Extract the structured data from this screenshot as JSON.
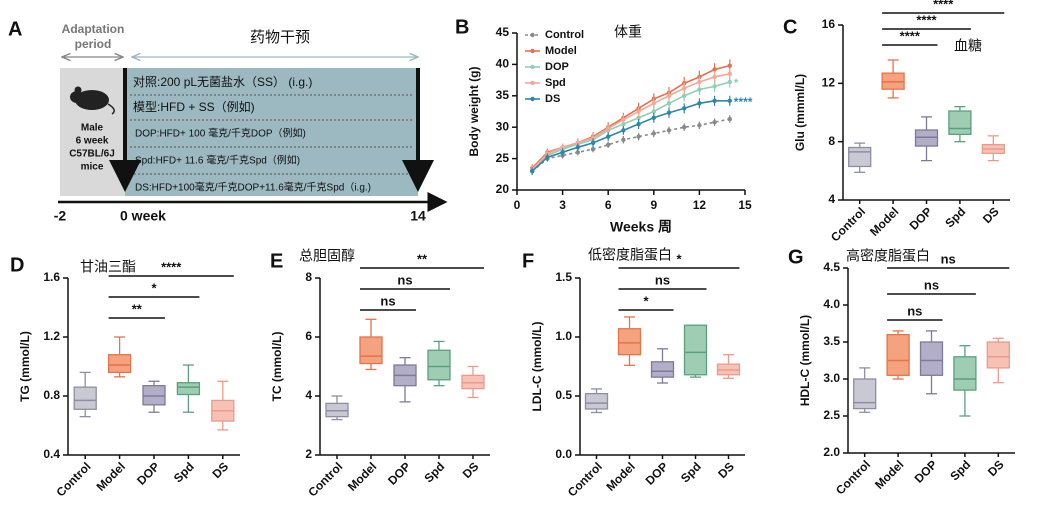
{
  "timeline": {
    "label": "A",
    "adaptation": [
      "Adaptation",
      "period"
    ],
    "intervention": "药物干预",
    "mouse": [
      "Male",
      "6 week",
      "C57BL/6J",
      "mice"
    ],
    "groups": [
      "对照:200 pL无菌盐水（SS） (i.g.)",
      "模型:HFD + SS（例如)",
      "DOP:HFD+ 100 毫克/千克DOP（例如)",
      "Spd:HFD+ 11.6 毫克/千克Spd（例如)",
      "DS:HFD+100毫克/千克DOP+11.6毫克/千克Spd（i.g.)"
    ],
    "ticks": [
      "-2",
      "0 week",
      "14"
    ]
  },
  "chart_data": [
    {
      "type": "line",
      "label": "B",
      "annotation": "体重",
      "xlabel": "Weeks 周",
      "ylabel": "Body weight (g)",
      "x": [
        1,
        2,
        3,
        4,
        5,
        6,
        7,
        8,
        9,
        10,
        11,
        12,
        13,
        14
      ],
      "xlim": [
        0,
        15
      ],
      "xticks": [
        0,
        3,
        6,
        9,
        12,
        15
      ],
      "ylim": [
        20,
        45
      ],
      "yticks": [
        20,
        25,
        30,
        35,
        40,
        45
      ],
      "series": [
        {
          "name": "Control",
          "color": "#8a8a8a",
          "dashed": true,
          "values": [
            23,
            25,
            25.5,
            26,
            26.5,
            27.2,
            28,
            28.5,
            29,
            29.5,
            30,
            30.3,
            30.8,
            31.3
          ],
          "errors": [
            0.5,
            0.5,
            0.5,
            0.5,
            0.5,
            0.5,
            0.6,
            0.6,
            0.6,
            0.6,
            0.6,
            0.6,
            0.6,
            0.6
          ]
        },
        {
          "name": "Model",
          "color": "#e8704f",
          "values": [
            23.5,
            26,
            26.8,
            27.5,
            28.5,
            30,
            31.5,
            33,
            34.5,
            35.5,
            37,
            38,
            39.2,
            39.8
          ],
          "errors": [
            0.6,
            0.6,
            0.6,
            0.7,
            0.7,
            0.8,
            0.8,
            0.9,
            0.9,
            0.9,
            1,
            1,
            1,
            1
          ]
        },
        {
          "name": "DOP",
          "color": "#8fcfb5",
          "values": [
            23.2,
            25.5,
            26.5,
            27.3,
            28,
            29.5,
            30.5,
            31.5,
            32.5,
            33.8,
            35,
            36,
            36.5,
            37.2
          ],
          "errors": [
            0.6,
            0.6,
            0.6,
            0.6,
            0.7,
            0.7,
            0.8,
            0.8,
            0.8,
            0.9,
            0.9,
            0.9,
            0.9,
            0.9
          ]
        },
        {
          "name": "Spd",
          "color": "#f2a999",
          "values": [
            23.3,
            25.8,
            26.8,
            27.5,
            28.3,
            29.8,
            31.2,
            32.5,
            33.8,
            35,
            36.2,
            37.2,
            38,
            38.5
          ],
          "errors": [
            0.6,
            0.6,
            0.6,
            0.6,
            0.7,
            0.7,
            0.8,
            0.8,
            0.8,
            0.9,
            0.9,
            0.9,
            0.9,
            0.9
          ]
        },
        {
          "name": "DS",
          "color": "#2e86ab",
          "values": [
            23,
            25.2,
            26,
            26.8,
            27.5,
            28.5,
            29.5,
            30.5,
            31.5,
            32.3,
            33,
            33.8,
            34.2,
            34.2
          ],
          "errors": [
            0.6,
            0.6,
            0.6,
            0.6,
            0.7,
            0.7,
            0.7,
            0.8,
            0.8,
            0.8,
            0.8,
            0.8,
            0.8,
            0.8
          ]
        }
      ],
      "annotations": [
        {
          "text": "*",
          "series": "DOP"
        },
        {
          "text": "****",
          "series": "DS"
        }
      ]
    },
    {
      "type": "box",
      "label": "C",
      "annotation": "血糖",
      "ylabel": "Glu (mmml/L)",
      "categories": [
        "Control",
        "Model",
        "DOP",
        "Spd",
        "DS"
      ],
      "colors": [
        "#8e8ea2",
        "#e5734b",
        "#7f7a96",
        "#5aa07e",
        "#e99c8b"
      ],
      "fills": [
        "#c9c9d4",
        "#f5a37f",
        "#b3aec8",
        "#9fcdb3",
        "#f7c1b5"
      ],
      "ylim": [
        4,
        16
      ],
      "yticks": [
        4,
        8,
        12,
        16
      ],
      "boxes": [
        {
          "min": 5.9,
          "q1": 6.3,
          "median": 7.3,
          "q3": 7.6,
          "max": 7.9
        },
        {
          "min": 11,
          "q1": 11.6,
          "median": 12.1,
          "q3": 12.7,
          "max": 13.6
        },
        {
          "min": 6.7,
          "q1": 7.7,
          "median": 8.3,
          "q3": 8.8,
          "max": 9.7
        },
        {
          "min": 8,
          "q1": 8.5,
          "median": 8.9,
          "q3": 10.1,
          "max": 10.4
        },
        {
          "min": 6.7,
          "q1": 7.2,
          "median": 7.5,
          "q3": 7.8,
          "max": 8.4
        }
      ],
      "comparisons": [
        {
          "groups": [
            "Model",
            "DOP"
          ],
          "label": "****"
        },
        {
          "groups": [
            "Model",
            "Spd"
          ],
          "label": "****"
        },
        {
          "groups": [
            "Model",
            "DS"
          ],
          "label": "****"
        }
      ]
    },
    {
      "type": "box",
      "label": "D",
      "annotation": "甘油三酯",
      "ylabel": "TG (mmol/L)",
      "categories": [
        "Control",
        "Model",
        "DOP",
        "Spd",
        "DS"
      ],
      "colors": [
        "#8e8ea2",
        "#e5734b",
        "#7f7a96",
        "#5aa07e",
        "#e99c8b"
      ],
      "fills": [
        "#c9c9d4",
        "#f5a37f",
        "#b3aec8",
        "#9fcdb3",
        "#f7c1b5"
      ],
      "ylim": [
        0.4,
        1.6
      ],
      "yticks": [
        0.4,
        0.8,
        1.2,
        1.6
      ],
      "boxes": [
        {
          "min": 0.66,
          "q1": 0.71,
          "median": 0.77,
          "q3": 0.86,
          "max": 0.96
        },
        {
          "min": 0.93,
          "q1": 0.96,
          "median": 1.01,
          "q3": 1.08,
          "max": 1.2
        },
        {
          "min": 0.69,
          "q1": 0.74,
          "median": 0.8,
          "q3": 0.87,
          "max": 0.9
        },
        {
          "min": 0.69,
          "q1": 0.81,
          "median": 0.86,
          "q3": 0.89,
          "max": 1.01
        },
        {
          "min": 0.57,
          "q1": 0.63,
          "median": 0.7,
          "q3": 0.77,
          "max": 0.9
        }
      ],
      "comparisons": [
        {
          "groups": [
            "Model",
            "DOP"
          ],
          "label": "**"
        },
        {
          "groups": [
            "Model",
            "Spd"
          ],
          "label": "*"
        },
        {
          "groups": [
            "Model",
            "DS"
          ],
          "label": "****"
        }
      ]
    },
    {
      "type": "box",
      "label": "E",
      "annotation": "总胆固醇",
      "ylabel": "TC (mmol/L)",
      "categories": [
        "Control",
        "Model",
        "DOP",
        "Spd",
        "DS"
      ],
      "colors": [
        "#8e8ea2",
        "#e5734b",
        "#7f7a96",
        "#5aa07e",
        "#e99c8b"
      ],
      "fills": [
        "#c9c9d4",
        "#f5a37f",
        "#b3aec8",
        "#9fcdb3",
        "#f7c1b5"
      ],
      "ylim": [
        2,
        8
      ],
      "yticks": [
        2,
        4,
        6,
        8
      ],
      "boxes": [
        {
          "min": 3.2,
          "q1": 3.3,
          "median": 3.5,
          "q3": 3.75,
          "max": 4.0
        },
        {
          "min": 4.9,
          "q1": 5.1,
          "median": 5.35,
          "q3": 6.0,
          "max": 6.6
        },
        {
          "min": 3.8,
          "q1": 4.35,
          "median": 4.7,
          "q3": 5.05,
          "max": 5.3
        },
        {
          "min": 4.35,
          "q1": 4.55,
          "median": 5.0,
          "q3": 5.55,
          "max": 5.85
        },
        {
          "min": 3.95,
          "q1": 4.25,
          "median": 4.45,
          "q3": 4.7,
          "max": 5.0
        }
      ],
      "comparisons": [
        {
          "groups": [
            "Model",
            "DOP"
          ],
          "label": "ns"
        },
        {
          "groups": [
            "Model",
            "Spd"
          ],
          "label": "ns"
        },
        {
          "groups": [
            "Model",
            "DS"
          ],
          "label": "**"
        }
      ]
    },
    {
      "type": "box",
      "label": "F",
      "annotation": "低密度脂蛋白",
      "ylabel": "LDL-C (mmol/L)",
      "categories": [
        "Control",
        "Model",
        "DOP",
        "Spd",
        "DS"
      ],
      "colors": [
        "#8e8ea2",
        "#e5734b",
        "#7f7a96",
        "#5aa07e",
        "#e99c8b"
      ],
      "fills": [
        "#c9c9d4",
        "#f5a37f",
        "#b3aec8",
        "#9fcdb3",
        "#f7c1b5"
      ],
      "ylim": [
        0,
        1.5
      ],
      "yticks": [
        {
          "value": 0,
          "label": "0.0"
        },
        0.5,
        {
          "value": 1,
          "label": "1.0"
        },
        1.5
      ],
      "boxes": [
        {
          "min": 0.36,
          "q1": 0.39,
          "median": 0.44,
          "q3": 0.52,
          "max": 0.56
        },
        {
          "min": 0.76,
          "q1": 0.85,
          "median": 0.95,
          "q3": 1.07,
          "max": 1.17
        },
        {
          "min": 0.61,
          "q1": 0.66,
          "median": 0.71,
          "q3": 0.79,
          "max": 0.9
        },
        {
          "min": 0.66,
          "q1": 0.68,
          "median": 0.87,
          "q3": 1.1,
          "max": 1.1
        },
        {
          "min": 0.65,
          "q1": 0.68,
          "median": 0.72,
          "q3": 0.77,
          "max": 0.85
        }
      ],
      "comparisons": [
        {
          "groups": [
            "Model",
            "DOP"
          ],
          "label": "*"
        },
        {
          "groups": [
            "Model",
            "Spd"
          ],
          "label": "ns"
        },
        {
          "groups": [
            "Model",
            "DS"
          ],
          "label": "*"
        }
      ]
    },
    {
      "type": "box",
      "label": "G",
      "annotation": "高密度脂蛋白",
      "ylabel": "HDL-C (mmol/L)",
      "categories": [
        "Control",
        "Model",
        "DOP",
        "Spd",
        "DS"
      ],
      "colors": [
        "#8e8ea2",
        "#e5734b",
        "#7f7a96",
        "#5aa07e",
        "#e99c8b"
      ],
      "fills": [
        "#c9c9d4",
        "#f5a37f",
        "#b3aec8",
        "#9fcdb3",
        "#f7c1b5"
      ],
      "ylim": [
        2,
        4.5
      ],
      "yticks": [
        {
          "value": 2,
          "label": "2.0"
        },
        2.5,
        {
          "value": 3,
          "label": "3.0"
        },
        3.5,
        {
          "value": 4,
          "label": "4.0"
        },
        4.5
      ],
      "boxes": [
        {
          "min": 2.55,
          "q1": 2.6,
          "median": 2.68,
          "q3": 3.0,
          "max": 3.15
        },
        {
          "min": 3.0,
          "q1": 3.05,
          "median": 3.25,
          "q3": 3.6,
          "max": 3.65
        },
        {
          "min": 2.8,
          "q1": 3.05,
          "median": 3.25,
          "q3": 3.5,
          "max": 3.65
        },
        {
          "min": 2.5,
          "q1": 2.85,
          "median": 3.0,
          "q3": 3.3,
          "max": 3.45
        },
        {
          "min": 2.95,
          "q1": 3.15,
          "median": 3.3,
          "q3": 3.5,
          "max": 3.55
        }
      ],
      "comparisons": [
        {
          "groups": [
            "Model",
            "DOP"
          ],
          "label": "ns"
        },
        {
          "groups": [
            "Model",
            "Spd"
          ],
          "label": "ns"
        },
        {
          "groups": [
            "Model",
            "DS"
          ],
          "label": "ns"
        }
      ]
    }
  ]
}
